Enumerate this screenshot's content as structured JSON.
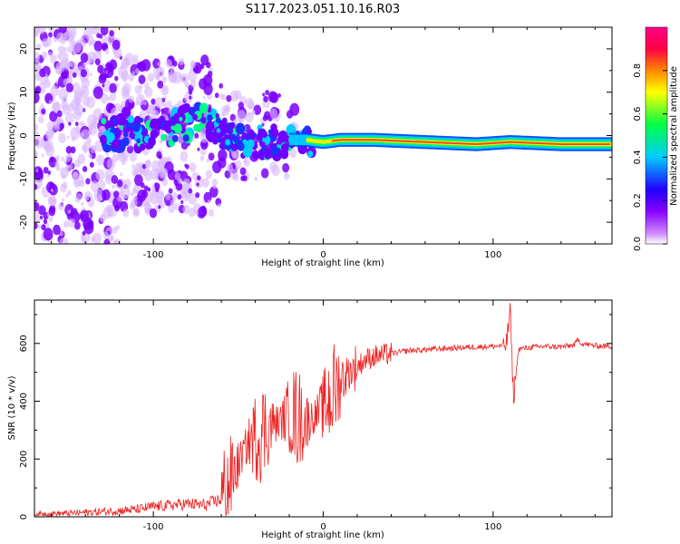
{
  "title": "S117.2023.051.10.16.R03",
  "chart_data": [
    {
      "type": "heatmap",
      "name": "spectrogram",
      "xlabel": "Height of straight line (km)",
      "ylabel": "Frequency (Hz)",
      "xlim": [
        -170,
        170
      ],
      "ylim": [
        -25,
        25
      ],
      "x_ticks": [
        -100,
        0,
        100
      ],
      "x_tick_labels": [
        "-100",
        "0",
        "100"
      ],
      "y_ticks": [
        -20,
        -10,
        0,
        10,
        20
      ],
      "y_tick_labels": [
        "-20",
        "-10",
        "0",
        "10",
        "20"
      ],
      "colorbar": {
        "label": "Normalized spectral amplitude",
        "range": [
          0,
          1
        ],
        "ticks": [
          0.0,
          0.2,
          0.4,
          0.6,
          0.8
        ],
        "tick_labels": [
          "0.0",
          "0.2",
          "0.4",
          "0.6",
          "0.8"
        ],
        "colors": [
          "#ffffff",
          "#cc88ff",
          "#8800ff",
          "#2200ff",
          "#00ccff",
          "#00ff44",
          "#ffff00",
          "#ff8800",
          "#ff0044",
          "#ff0088"
        ]
      },
      "carrier_trace": {
        "x": [
          -130,
          -110,
          -90,
          -80,
          -70,
          -60,
          -50,
          -40,
          -30,
          -20,
          -10,
          0,
          10,
          30,
          60,
          90,
          110,
          140,
          170
        ],
        "y": [
          1.0,
          0.5,
          1.5,
          3.0,
          3.5,
          0.5,
          -1.0,
          -1.5,
          -1.5,
          -1.0,
          -1.0,
          -1.5,
          -1.0,
          -1.0,
          -1.5,
          -2.0,
          -1.5,
          -2.0,
          -2.0
        ]
      },
      "grid": false
    },
    {
      "type": "line",
      "name": "snr",
      "xlabel": "Height of straight line (km)",
      "ylabel": "SNR (10 * v/v)",
      "xlim": [
        -170,
        170
      ],
      "ylim": [
        0,
        750
      ],
      "x_ticks": [
        -100,
        0,
        100
      ],
      "x_tick_labels": [
        "-100",
        "0",
        "100"
      ],
      "y_ticks": [
        0,
        200,
        400,
        600
      ],
      "y_tick_labels": [
        "0",
        "200",
        "400",
        "600"
      ],
      "color": "#ee2222",
      "series": [
        {
          "x": [
            -170,
            -150,
            -130,
            -110,
            -100,
            -90,
            -80,
            -70,
            -60,
            -55,
            -50,
            -45,
            -40,
            -35,
            -30,
            -25,
            -20,
            -15,
            -10,
            -5,
            0,
            5,
            10,
            15,
            20,
            25,
            30,
            40,
            50,
            60,
            70,
            80,
            90,
            100,
            105,
            108,
            110,
            112,
            115,
            120,
            130,
            140,
            148,
            150,
            152,
            160,
            170
          ],
          "y": [
            10,
            12,
            18,
            25,
            35,
            40,
            45,
            40,
            60,
            120,
            180,
            250,
            280,
            300,
            320,
            330,
            360,
            340,
            330,
            350,
            380,
            420,
            470,
            500,
            520,
            545,
            555,
            565,
            575,
            578,
            582,
            585,
            588,
            590,
            592,
            600,
            720,
            410,
            580,
            585,
            590,
            588,
            595,
            615,
            600,
            592,
            590
          ]
        }
      ],
      "grid": false
    }
  ]
}
